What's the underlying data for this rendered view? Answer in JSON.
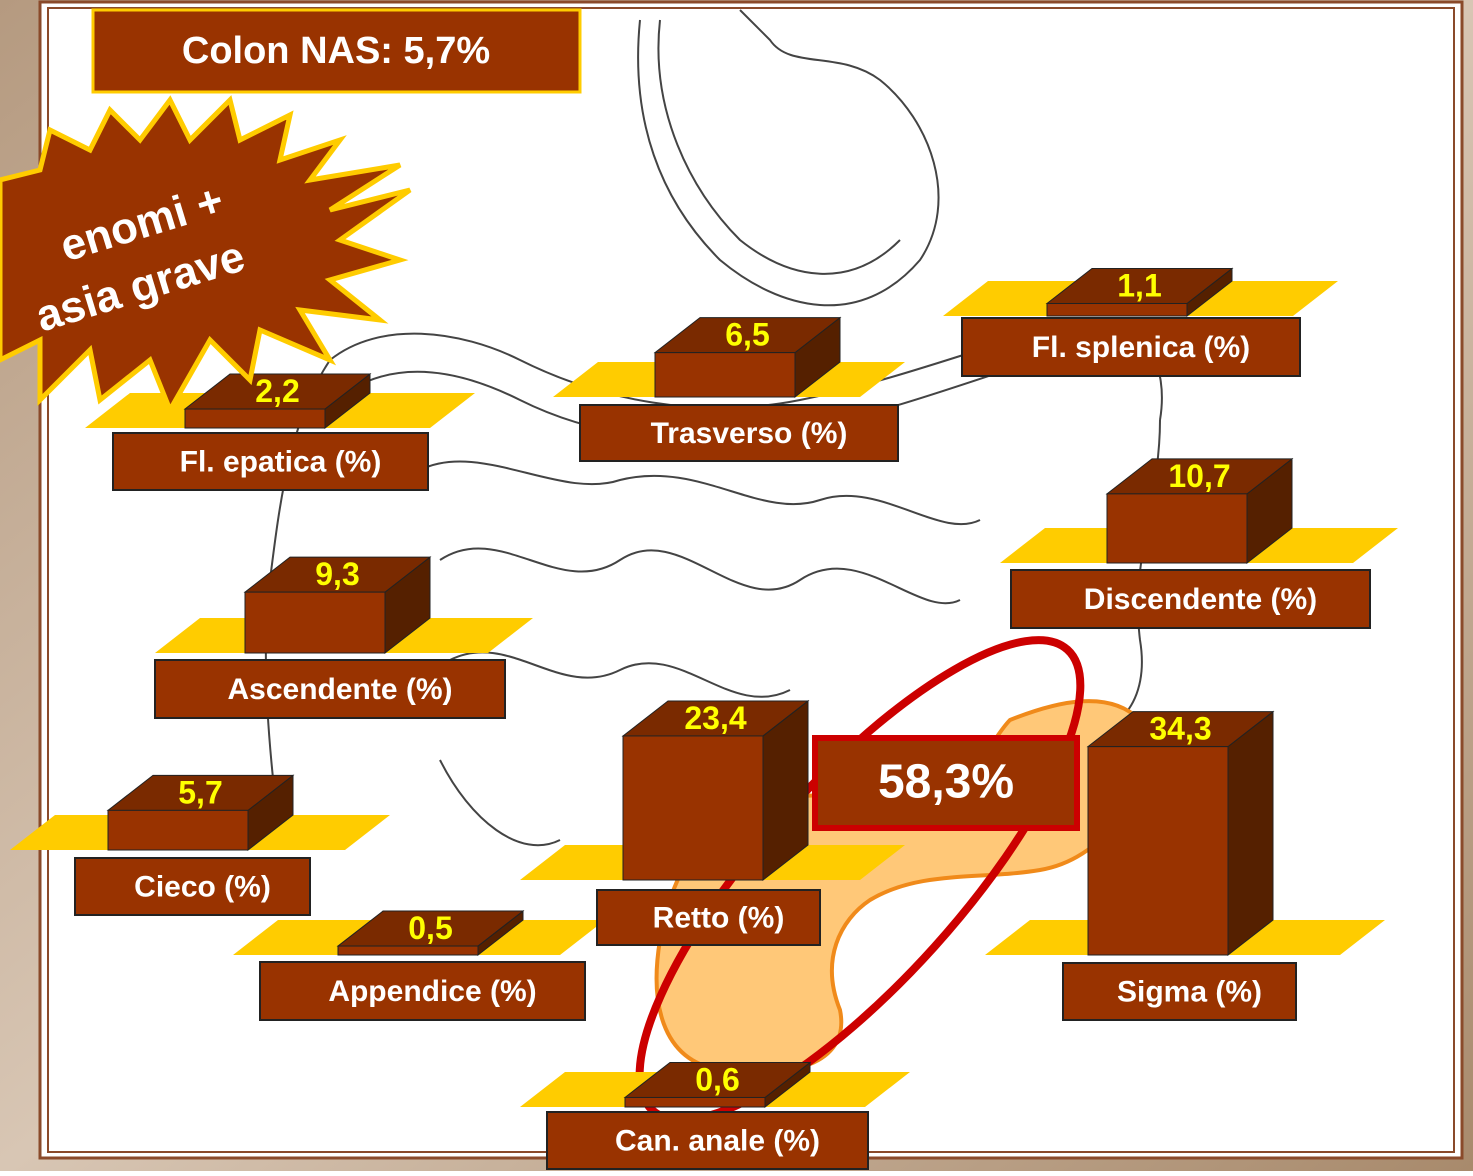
{
  "header": {
    "note": "Colon NAS: 5,7%"
  },
  "starburst": {
    "lines": [
      "enomi  +",
      "asia grave"
    ]
  },
  "highlight": {
    "label": "58,3%"
  },
  "segments": [
    {
      "label": "Fl. epatica (%)",
      "value": 2.2,
      "value_label": "2,2"
    },
    {
      "label": "Trasverso (%)",
      "value": 6.5,
      "value_label": "6,5"
    },
    {
      "label": "Fl. splenica (%)",
      "value": 1.1,
      "value_label": "1,1"
    },
    {
      "label": "Discendente (%)",
      "value": 10.7,
      "value_label": "10,7"
    },
    {
      "label": "Ascendente (%)",
      "value": 9.3,
      "value_label": "9,3"
    },
    {
      "label": "Cieco (%)",
      "value": 5.7,
      "value_label": "5,7"
    },
    {
      "label": "Appendice (%)",
      "value": 0.5,
      "value_label": "0,5"
    },
    {
      "label": "Retto (%)",
      "value": 23.4,
      "value_label": "23,4"
    },
    {
      "label": "Sigma (%)",
      "value": 34.3,
      "value_label": "34,3"
    },
    {
      "label": "Can. anale (%)",
      "value": 0.6,
      "value_label": "0,6"
    }
  ]
}
